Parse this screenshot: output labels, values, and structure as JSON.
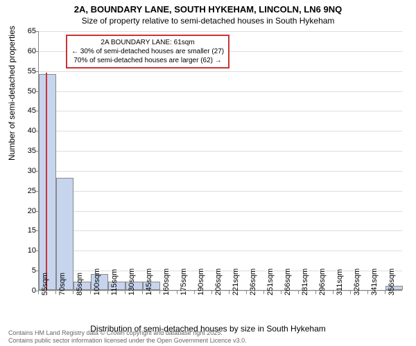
{
  "title_main": "2A, BOUNDARY LANE, SOUTH HYKEHAM, LINCOLN, LN6 9NQ",
  "title_sub": "Size of property relative to semi-detached houses in South Hykeham",
  "x_axis_title": "Distribution of semi-detached houses by size in South Hykeham",
  "y_axis_title": "Number of semi-detached properties",
  "y_max": 65,
  "y_ticks": [
    0,
    5,
    10,
    15,
    20,
    25,
    30,
    35,
    40,
    45,
    50,
    55,
    60,
    65
  ],
  "x_categories": [
    "55sqm",
    "70sqm",
    "85sqm",
    "100sqm",
    "115sqm",
    "130sqm",
    "145sqm",
    "160sqm",
    "175sqm",
    "190sqm",
    "206sqm",
    "221sqm",
    "236sqm",
    "251sqm",
    "266sqm",
    "281sqm",
    "296sqm",
    "311sqm",
    "326sqm",
    "341sqm",
    "356sqm"
  ],
  "values": [
    54,
    28,
    2,
    4,
    2,
    2,
    2,
    0,
    0,
    0,
    0,
    0,
    0,
    0,
    0,
    0,
    0,
    0,
    0,
    0,
    1
  ],
  "highlight_x": 61,
  "x_min": 55,
  "x_step": 15,
  "bar_color": "#c6d4ee",
  "bar_border": "#888888",
  "highlight_color": "#cc3333",
  "grid_color": "#dddddd",
  "plot_bg": "#ffffff",
  "bar_width_ratio": 1.0,
  "annotation": {
    "line1": "2A BOUNDARY LANE: 61sqm",
    "line2": "← 30% of semi-detached houses are smaller (27)",
    "line3": "70% of semi-detached houses are larger (62) →"
  },
  "footer1": "Contains HM Land Registry data © Crown copyright and database right 2025.",
  "footer2": "Contains public sector information licensed under the Open Government Licence v3.0."
}
